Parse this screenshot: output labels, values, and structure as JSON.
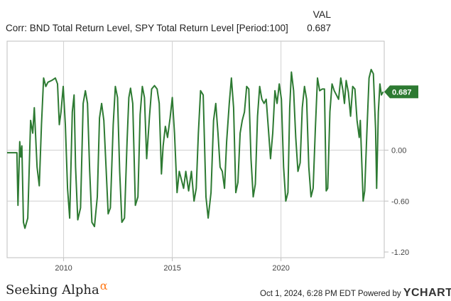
{
  "header": {
    "val_label": "VAL",
    "title": "Corr: BND Total Return Level, SPY Total Return Level [Period:100]",
    "val": "0.687"
  },
  "footer": {
    "brand": "Seeking Alpha",
    "brand_symbol": "α",
    "timestamp": "Oct 1, 2024, 6:28 PM EDT",
    "powered_by": "Powered by",
    "ycharts": "YCHARTS"
  },
  "colors": {
    "line": "#2d7a32",
    "badge": "#2d7a32",
    "grid": "#d0d0d0",
    "plot_border": "#bfbfbf"
  },
  "chart_data": {
    "type": "line",
    "title": "",
    "xlabel": "",
    "ylabel": "",
    "xlim": [
      2007.4,
      2024.75
    ],
    "ylim": [
      -1.2,
      1.2
    ],
    "x_ticks": [
      2010,
      2015,
      2020
    ],
    "x_tick_labels": [
      "2010",
      "2015",
      "2020"
    ],
    "y_ticks": [
      0,
      -0.6,
      -1.2
    ],
    "y_tick_labels": [
      "0.00",
      "-0.60",
      "-1.20"
    ],
    "grid": true,
    "last_value_label": "0.687",
    "series": [
      {
        "values": [
          [
            2007.4,
            -0.03
          ],
          [
            2007.85,
            -0.03
          ],
          [
            2007.9,
            -0.65
          ],
          [
            2007.98,
            0.1
          ],
          [
            2008.03,
            -0.08
          ],
          [
            2008.08,
            0.05
          ],
          [
            2008.15,
            -0.85
          ],
          [
            2008.22,
            -0.92
          ],
          [
            2008.35,
            -0.8
          ],
          [
            2008.48,
            0.35
          ],
          [
            2008.58,
            0.2
          ],
          [
            2008.65,
            0.5
          ],
          [
            2008.78,
            -0.2
          ],
          [
            2008.88,
            -0.42
          ],
          [
            2008.98,
            0.3
          ],
          [
            2009.08,
            0.85
          ],
          [
            2009.18,
            0.75
          ],
          [
            2009.28,
            0.8
          ],
          [
            2009.45,
            0.82
          ],
          [
            2009.62,
            0.85
          ],
          [
            2009.72,
            0.78
          ],
          [
            2009.8,
            0.3
          ],
          [
            2009.88,
            0.45
          ],
          [
            2009.98,
            0.75
          ],
          [
            2010.08,
            0.3
          ],
          [
            2010.18,
            -0.45
          ],
          [
            2010.28,
            -0.8
          ],
          [
            2010.4,
            0.45
          ],
          [
            2010.48,
            0.65
          ],
          [
            2010.55,
            -0.2
          ],
          [
            2010.65,
            -0.82
          ],
          [
            2010.78,
            -0.68
          ],
          [
            2010.9,
            0.55
          ],
          [
            2011.0,
            0.7
          ],
          [
            2011.1,
            0.55
          ],
          [
            2011.2,
            -0.25
          ],
          [
            2011.3,
            -0.85
          ],
          [
            2011.42,
            -0.9
          ],
          [
            2011.55,
            -0.55
          ],
          [
            2011.65,
            0.38
          ],
          [
            2011.75,
            0.55
          ],
          [
            2011.85,
            0.35
          ],
          [
            2011.95,
            -0.2
          ],
          [
            2012.05,
            -0.75
          ],
          [
            2012.15,
            -0.68
          ],
          [
            2012.28,
            0.3
          ],
          [
            2012.38,
            0.75
          ],
          [
            2012.48,
            0.62
          ],
          [
            2012.58,
            -0.25
          ],
          [
            2012.68,
            -0.85
          ],
          [
            2012.8,
            -0.8
          ],
          [
            2012.92,
            0.1
          ],
          [
            2013.0,
            0.62
          ],
          [
            2013.08,
            0.73
          ],
          [
            2013.18,
            0.55
          ],
          [
            2013.3,
            -0.65
          ],
          [
            2013.42,
            -0.55
          ],
          [
            2013.52,
            0.42
          ],
          [
            2013.62,
            0.75
          ],
          [
            2013.72,
            0.62
          ],
          [
            2013.82,
            -0.1
          ],
          [
            2013.95,
            0.4
          ],
          [
            2014.05,
            0.72
          ],
          [
            2014.18,
            0.76
          ],
          [
            2014.3,
            0.72
          ],
          [
            2014.4,
            0.55
          ],
          [
            2014.5,
            -0.28
          ],
          [
            2014.58,
            0.05
          ],
          [
            2014.68,
            0.28
          ],
          [
            2014.78,
            0.15
          ],
          [
            2014.9,
            0.38
          ],
          [
            2015.0,
            0.62
          ],
          [
            2015.1,
            0.2
          ],
          [
            2015.22,
            -0.5
          ],
          [
            2015.32,
            -0.25
          ],
          [
            2015.42,
            -0.35
          ],
          [
            2015.52,
            -0.45
          ],
          [
            2015.62,
            -0.25
          ],
          [
            2015.75,
            -0.48
          ],
          [
            2015.88,
            -0.25
          ],
          [
            2016.0,
            -0.6
          ],
          [
            2016.1,
            -0.45
          ],
          [
            2016.2,
            0.2
          ],
          [
            2016.3,
            0.7
          ],
          [
            2016.42,
            0.65
          ],
          [
            2016.55,
            -0.55
          ],
          [
            2016.65,
            -0.8
          ],
          [
            2016.78,
            -0.5
          ],
          [
            2016.9,
            0.35
          ],
          [
            2017.0,
            0.55
          ],
          [
            2017.1,
            0.2
          ],
          [
            2017.2,
            -0.2
          ],
          [
            2017.3,
            -0.25
          ],
          [
            2017.4,
            -0.45
          ],
          [
            2017.5,
            0.1
          ],
          [
            2017.62,
            0.55
          ],
          [
            2017.72,
            0.85
          ],
          [
            2017.82,
            0.5
          ],
          [
            2017.92,
            -0.5
          ],
          [
            2018.02,
            -0.38
          ],
          [
            2018.12,
            0.2
          ],
          [
            2018.22,
            0.35
          ],
          [
            2018.32,
            0.45
          ],
          [
            2018.42,
            0.75
          ],
          [
            2018.52,
            0.72
          ],
          [
            2018.62,
            -0.1
          ],
          [
            2018.72,
            -0.55
          ],
          [
            2018.82,
            -0.4
          ],
          [
            2018.92,
            0.4
          ],
          [
            2019.02,
            0.75
          ],
          [
            2019.12,
            0.6
          ],
          [
            2019.22,
            0.55
          ],
          [
            2019.32,
            0.6
          ],
          [
            2019.42,
            0.25
          ],
          [
            2019.52,
            -0.1
          ],
          [
            2019.62,
            0.2
          ],
          [
            2019.72,
            0.7
          ],
          [
            2019.82,
            0.55
          ],
          [
            2019.92,
            0.78
          ],
          [
            2020.02,
            0.6
          ],
          [
            2020.12,
            -0.2
          ],
          [
            2020.22,
            -0.6
          ],
          [
            2020.32,
            -0.5
          ],
          [
            2020.4,
            0.5
          ],
          [
            2020.48,
            0.92
          ],
          [
            2020.58,
            0.7
          ],
          [
            2020.68,
            0.15
          ],
          [
            2020.78,
            -0.25
          ],
          [
            2020.88,
            -0.15
          ],
          [
            2020.98,
            0.5
          ],
          [
            2021.08,
            0.75
          ],
          [
            2021.18,
            0.6
          ],
          [
            2021.28,
            -0.2
          ],
          [
            2021.38,
            -0.55
          ],
          [
            2021.48,
            -0.45
          ],
          [
            2021.58,
            0.25
          ],
          [
            2021.68,
            0.85
          ],
          [
            2021.78,
            0.7
          ],
          [
            2021.9,
            0.72
          ],
          [
            2022.0,
            0.72
          ],
          [
            2022.08,
            -0.48
          ],
          [
            2022.15,
            -0.45
          ],
          [
            2022.25,
            0.45
          ],
          [
            2022.35,
            0.78
          ],
          [
            2022.45,
            0.7
          ],
          [
            2022.55,
            0.65
          ],
          [
            2022.65,
            0.6
          ],
          [
            2022.75,
            0.85
          ],
          [
            2022.85,
            0.7
          ],
          [
            2022.92,
            0.55
          ],
          [
            2023.0,
            0.82
          ],
          [
            2023.1,
            0.68
          ],
          [
            2023.2,
            0.4
          ],
          [
            2023.3,
            0.75
          ],
          [
            2023.4,
            0.72
          ],
          [
            2023.5,
            0.35
          ],
          [
            2023.6,
            0.15
          ],
          [
            2023.65,
            0.35
          ],
          [
            2023.78,
            -0.6
          ],
          [
            2023.85,
            -0.48
          ],
          [
            2023.95,
            0.2
          ],
          [
            2024.05,
            0.85
          ],
          [
            2024.15,
            0.95
          ],
          [
            2024.25,
            0.9
          ],
          [
            2024.35,
            0.25
          ],
          [
            2024.4,
            -0.45
          ],
          [
            2024.48,
            0.45
          ],
          [
            2024.55,
            0.78
          ],
          [
            2024.62,
            0.65
          ],
          [
            2024.7,
            0.687
          ]
        ]
      }
    ]
  }
}
